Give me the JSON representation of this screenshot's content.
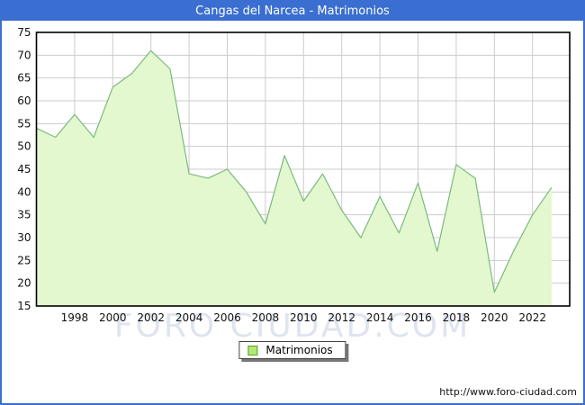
{
  "title": "Cangas del Narcea - Matrimonios",
  "legend": {
    "label": "Matrimonios"
  },
  "watermark": "FORO CIUDAD.COM",
  "footer_url": "http://www.foro-ciudad.com",
  "colors": {
    "frame_blue": "#3a6ed0",
    "plot_border": "#000000",
    "grid": "#cccccc",
    "area_fill": "#e3f8ce",
    "area_stroke": "#7cb97f",
    "tick_text": "#111111",
    "watermark": "#dee4f0",
    "legend_swatch_fill": "#b2e873",
    "legend_swatch_border": "#55a02c"
  },
  "chart_data": {
    "type": "area",
    "title": "Cangas del Narcea - Matrimonios",
    "xlabel": "",
    "ylabel": "",
    "x": [
      1996,
      1997,
      1998,
      1999,
      2000,
      2001,
      2002,
      2003,
      2004,
      2005,
      2006,
      2007,
      2008,
      2009,
      2010,
      2011,
      2012,
      2013,
      2014,
      2015,
      2016,
      2017,
      2018,
      2019,
      2020,
      2021,
      2022,
      2023
    ],
    "values": [
      54,
      52,
      57,
      52,
      63,
      66,
      71,
      67,
      44,
      43,
      45,
      40,
      33,
      48,
      38,
      44,
      36,
      30,
      39,
      31,
      42,
      27,
      46,
      43,
      18,
      27,
      35,
      41
    ],
    "series_name": "Matrimonios",
    "ylim": [
      15,
      75
    ],
    "ytick_step": 5,
    "xticks": [
      1998,
      2000,
      2002,
      2004,
      2006,
      2008,
      2010,
      2012,
      2014,
      2016,
      2018,
      2020,
      2022
    ],
    "grid": true,
    "legend_position": "bottom-center"
  }
}
